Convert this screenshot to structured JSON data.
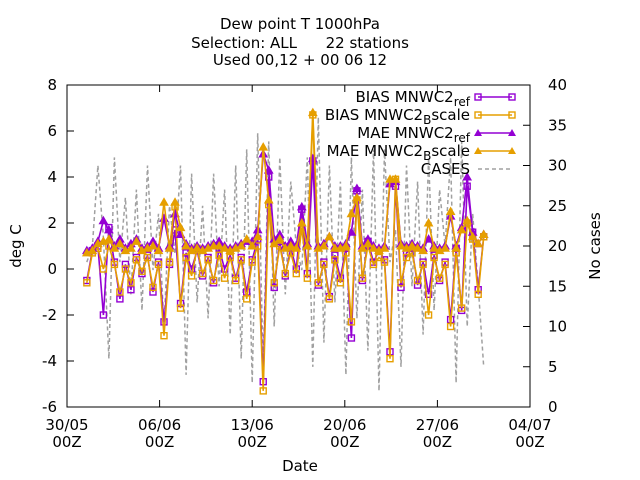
{
  "chart_data": {
    "type": "line",
    "title_lines": [
      "Dew point T 1000hPa",
      "Selection: ALL      22 stations",
      "Used 00,12 + 00 06 12"
    ],
    "xlabel": "Date",
    "ylabel": "deg C",
    "y2label": "No cases",
    "xlim": [
      "2016-05-30 00Z",
      "2016-07-04 00Z"
    ],
    "ylim": [
      -6,
      8
    ],
    "y2lim": [
      0,
      40
    ],
    "x_ticks": [
      {
        "top": "30/05",
        "bottom": "00Z"
      },
      {
        "top": "06/06",
        "bottom": "00Z"
      },
      {
        "top": "13/06",
        "bottom": "00Z"
      },
      {
        "top": "20/06",
        "bottom": "00Z"
      },
      {
        "top": "27/06",
        "bottom": "00Z"
      },
      {
        "top": "04/07",
        "bottom": "00Z"
      }
    ],
    "y_ticks": [
      "-6",
      "-4",
      "-2",
      "0",
      "2",
      "4",
      "6",
      "8"
    ],
    "y2_ticks": [
      "0",
      "5",
      "10",
      "15",
      "20",
      "25",
      "30",
      "35",
      "40"
    ],
    "legend_position": "top-right",
    "series": [
      {
        "name": "BIAS MNWC2_ref",
        "legend_main": "BIAS MNWC2",
        "legend_sub": "ref",
        "color": "#9400d3",
        "marker": "square",
        "values": [
          -0.5,
          0.8,
          1.0,
          -2.0,
          1.8,
          0.3,
          -1.3,
          0.2,
          -0.9,
          0.5,
          -0.2,
          0.6,
          -1.0,
          0.3,
          -2.3,
          0.2,
          1.7,
          -1.5,
          0.7,
          0.0,
          0.8,
          -0.3,
          0.5,
          -0.6,
          0.9,
          0.0,
          0.6,
          -0.4,
          0.5,
          -1.0,
          0.4,
          1.3,
          -4.9,
          4.0,
          -0.8,
          1.2,
          -0.3,
          0.9,
          0.0,
          2.6,
          -0.2,
          4.7,
          -0.7,
          0.3,
          -1.2,
          0.6,
          -0.4,
          0.9,
          -3.0,
          3.4,
          -0.5,
          1.2,
          0.3,
          0.8,
          0.4,
          -3.6,
          3.6,
          -0.8,
          0.7,
          0.9,
          -0.7,
          0.3,
          -1.1,
          0.6,
          -0.5,
          0.3,
          -2.2,
          0.9,
          -1.8,
          3.6,
          1.6,
          -0.9,
          1.4
        ]
      },
      {
        "name": "BIAS MNWC2_Bscale",
        "legend_main": "BIAS MNWC2",
        "legend_sub": "B",
        "legend_tail": "scale",
        "color": "#e69f00",
        "marker": "square",
        "values": [
          -0.6,
          0.7,
          0.9,
          0.0,
          1.0,
          0.2,
          -1.0,
          0.0,
          -0.6,
          0.4,
          -0.1,
          0.5,
          -0.8,
          0.2,
          -2.9,
          0.3,
          2.7,
          -1.7,
          0.5,
          -0.3,
          0.9,
          -0.2,
          0.4,
          -0.5,
          0.6,
          -0.4,
          0.5,
          -0.5,
          0.4,
          -1.3,
          0.3,
          1.0,
          -5.3,
          2.8,
          -0.6,
          1.0,
          -0.2,
          0.7,
          -0.2,
          1.8,
          -0.4,
          6.7,
          -0.6,
          0.2,
          -1.3,
          0.4,
          -0.6,
          0.7,
          -2.3,
          3.0,
          -0.4,
          1.0,
          0.2,
          0.5,
          0.3,
          -3.9,
          3.9,
          -0.6,
          0.5,
          0.7,
          -0.5,
          0.2,
          -2.0,
          0.5,
          -0.4,
          0.2,
          -2.5,
          0.7,
          -1.7,
          2.0,
          1.3,
          -1.1,
          1.4
        ]
      },
      {
        "name": "MAE MNWC2_ref",
        "legend_main": "MAE MNWC2",
        "legend_sub": "ref",
        "color": "#9400d3",
        "marker": "triangle",
        "values": [
          0.8,
          0.9,
          1.2,
          2.1,
          1.7,
          1.0,
          1.3,
          0.9,
          1.1,
          1.3,
          0.9,
          1.0,
          1.2,
          0.9,
          2.2,
          1.0,
          2.4,
          1.5,
          1.1,
          0.9,
          1.0,
          0.9,
          1.0,
          1.1,
          1.2,
          1.0,
          0.9,
          1.0,
          1.1,
          1.2,
          1.2,
          1.7,
          5.0,
          4.3,
          1.3,
          1.5,
          1.0,
          1.2,
          1.0,
          2.7,
          1.1,
          4.8,
          1.0,
          1.1,
          1.4,
          1.0,
          1.0,
          1.1,
          1.6,
          3.5,
          1.0,
          1.3,
          1.0,
          0.9,
          1.0,
          3.7,
          3.8,
          1.1,
          1.0,
          1.1,
          1.0,
          0.9,
          1.3,
          1.0,
          0.9,
          1.0,
          2.3,
          1.0,
          1.8,
          4.0,
          1.6,
          1.1,
          1.5
        ]
      },
      {
        "name": "MAE MNWC2_Bscale",
        "legend_main": "MAE MNWC2",
        "legend_sub": "B",
        "legend_tail": "scale",
        "color": "#e69f00",
        "marker": "triangle",
        "values": [
          0.7,
          0.8,
          1.1,
          1.2,
          1.3,
          0.9,
          1.1,
          0.8,
          0.9,
          1.2,
          0.8,
          0.9,
          1.0,
          0.8,
          2.9,
          0.9,
          2.9,
          1.8,
          1.0,
          0.8,
          0.9,
          0.8,
          0.9,
          1.0,
          1.0,
          0.9,
          0.8,
          0.9,
          1.0,
          1.3,
          1.0,
          1.4,
          5.3,
          3.0,
          1.1,
          1.3,
          0.9,
          1.0,
          0.9,
          2.0,
          1.0,
          6.8,
          0.9,
          1.0,
          1.4,
          0.9,
          0.9,
          1.0,
          2.4,
          3.1,
          0.9,
          1.1,
          0.9,
          0.8,
          0.9,
          3.9,
          3.9,
          1.0,
          0.9,
          1.0,
          0.9,
          0.8,
          2.0,
          0.9,
          0.8,
          0.9,
          2.5,
          0.9,
          1.7,
          2.1,
          1.4,
          1.1,
          1.5
        ]
      },
      {
        "name": "CASES",
        "legend_main": "CASES",
        "color": "#a0a0a0",
        "dashed": true,
        "values": [
          18,
          20,
          30,
          21,
          6,
          31,
          18,
          26,
          14,
          27,
          12,
          30,
          17,
          24,
          10,
          25,
          19,
          30,
          4,
          29,
          13,
          25,
          11,
          29,
          15,
          27,
          9,
          30,
          6,
          32,
          3,
          34,
          5,
          33,
          10,
          31,
          14,
          28,
          20,
          17,
          31,
          5,
          36,
          8,
          30,
          13,
          28,
          4,
          31,
          11,
          27,
          7,
          32,
          2,
          32,
          18,
          22,
          5,
          30,
          15,
          28,
          9,
          31,
          12,
          27,
          20,
          31,
          3,
          33,
          10,
          24,
          15,
          5
        ]
      }
    ]
  }
}
